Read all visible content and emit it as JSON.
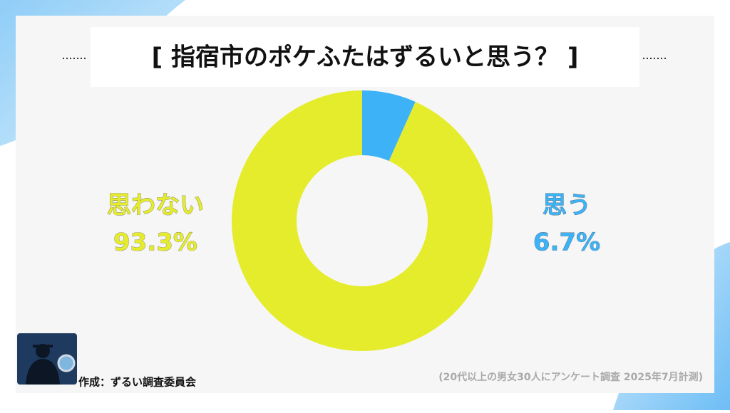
{
  "chart_data": {
    "type": "pie",
    "donut": true,
    "title": "[ 指宿市のポケふたはずるいと思う？ ]",
    "categories": [
      "思う",
      "思わない"
    ],
    "values": [
      6.7,
      93.3
    ],
    "value_labels": [
      "6.7%",
      "93.3%"
    ],
    "colors": [
      "#3db2f7",
      "#e5ec2b"
    ],
    "credit": "作成：ずるい調査委員会",
    "note": "(20代以上の男女30人にアンケート調査 2025年7月計測)"
  }
}
